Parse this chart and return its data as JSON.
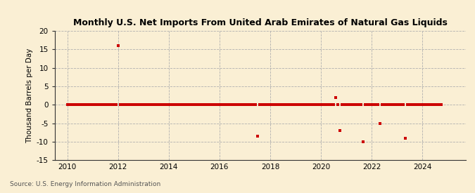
{
  "title": "Monthly U.S. Net Imports From United Arab Emirates of Natural Gas Liquids",
  "ylabel": "Thousand Barrels per Day",
  "source": "Source: U.S. Energy Information Administration",
  "background_color": "#faefd4",
  "marker_color": "#cc0000",
  "xlim": [
    2009.5,
    2025.7
  ],
  "ylim": [
    -15,
    20
  ],
  "yticks": [
    -15,
    -10,
    -5,
    0,
    5,
    10,
    15,
    20
  ],
  "xticks": [
    2010,
    2012,
    2014,
    2016,
    2018,
    2020,
    2022,
    2024
  ],
  "data": [
    [
      2010.0,
      0
    ],
    [
      2010.083,
      0
    ],
    [
      2010.167,
      0
    ],
    [
      2010.25,
      0
    ],
    [
      2010.333,
      0
    ],
    [
      2010.417,
      0
    ],
    [
      2010.5,
      0
    ],
    [
      2010.583,
      0
    ],
    [
      2010.667,
      0
    ],
    [
      2010.75,
      0
    ],
    [
      2010.833,
      0
    ],
    [
      2010.917,
      0
    ],
    [
      2011.0,
      0
    ],
    [
      2011.083,
      0
    ],
    [
      2011.167,
      0
    ],
    [
      2011.25,
      0
    ],
    [
      2011.333,
      0
    ],
    [
      2011.417,
      0
    ],
    [
      2011.5,
      0
    ],
    [
      2011.583,
      0
    ],
    [
      2011.667,
      0
    ],
    [
      2011.75,
      0
    ],
    [
      2011.833,
      0
    ],
    [
      2011.917,
      0
    ],
    [
      2012.0,
      16
    ],
    [
      2012.083,
      0
    ],
    [
      2012.167,
      0
    ],
    [
      2012.25,
      0
    ],
    [
      2012.333,
      0
    ],
    [
      2012.417,
      0
    ],
    [
      2012.5,
      0
    ],
    [
      2012.583,
      0
    ],
    [
      2012.667,
      0
    ],
    [
      2012.75,
      0
    ],
    [
      2012.833,
      0
    ],
    [
      2012.917,
      0
    ],
    [
      2013.0,
      0
    ],
    [
      2013.083,
      0
    ],
    [
      2013.167,
      0
    ],
    [
      2013.25,
      0
    ],
    [
      2013.333,
      0
    ],
    [
      2013.417,
      0
    ],
    [
      2013.5,
      0
    ],
    [
      2013.583,
      0
    ],
    [
      2013.667,
      0
    ],
    [
      2013.75,
      0
    ],
    [
      2013.833,
      0
    ],
    [
      2013.917,
      0
    ],
    [
      2014.0,
      0
    ],
    [
      2014.083,
      0
    ],
    [
      2014.167,
      0
    ],
    [
      2014.25,
      0
    ],
    [
      2014.333,
      0
    ],
    [
      2014.417,
      0
    ],
    [
      2014.5,
      0
    ],
    [
      2014.583,
      0
    ],
    [
      2014.667,
      0
    ],
    [
      2014.75,
      0
    ],
    [
      2014.833,
      0
    ],
    [
      2014.917,
      0
    ],
    [
      2015.0,
      0
    ],
    [
      2015.083,
      0
    ],
    [
      2015.167,
      0
    ],
    [
      2015.25,
      0
    ],
    [
      2015.333,
      0
    ],
    [
      2015.417,
      0
    ],
    [
      2015.5,
      0
    ],
    [
      2015.583,
      0
    ],
    [
      2015.667,
      0
    ],
    [
      2015.75,
      0
    ],
    [
      2015.833,
      0
    ],
    [
      2015.917,
      0
    ],
    [
      2016.0,
      0
    ],
    [
      2016.083,
      0
    ],
    [
      2016.167,
      0
    ],
    [
      2016.25,
      0
    ],
    [
      2016.333,
      0
    ],
    [
      2016.417,
      0
    ],
    [
      2016.5,
      0
    ],
    [
      2016.583,
      0
    ],
    [
      2016.667,
      0
    ],
    [
      2016.75,
      0
    ],
    [
      2016.833,
      0
    ],
    [
      2016.917,
      0
    ],
    [
      2017.0,
      0
    ],
    [
      2017.083,
      0
    ],
    [
      2017.167,
      0
    ],
    [
      2017.25,
      0
    ],
    [
      2017.333,
      0
    ],
    [
      2017.417,
      0
    ],
    [
      2017.5,
      -8.5
    ],
    [
      2017.583,
      0
    ],
    [
      2017.667,
      0
    ],
    [
      2017.75,
      0
    ],
    [
      2017.833,
      0
    ],
    [
      2017.917,
      0
    ],
    [
      2018.0,
      0
    ],
    [
      2018.083,
      0
    ],
    [
      2018.167,
      0
    ],
    [
      2018.25,
      0
    ],
    [
      2018.333,
      0
    ],
    [
      2018.417,
      0
    ],
    [
      2018.5,
      0
    ],
    [
      2018.583,
      0
    ],
    [
      2018.667,
      0
    ],
    [
      2018.75,
      0
    ],
    [
      2018.833,
      0
    ],
    [
      2018.917,
      0
    ],
    [
      2019.0,
      0
    ],
    [
      2019.083,
      0
    ],
    [
      2019.167,
      0
    ],
    [
      2019.25,
      0
    ],
    [
      2019.333,
      0
    ],
    [
      2019.417,
      0
    ],
    [
      2019.5,
      0
    ],
    [
      2019.583,
      0
    ],
    [
      2019.667,
      0
    ],
    [
      2019.75,
      0
    ],
    [
      2019.833,
      0
    ],
    [
      2019.917,
      0
    ],
    [
      2020.0,
      0
    ],
    [
      2020.083,
      0
    ],
    [
      2020.167,
      0
    ],
    [
      2020.25,
      0
    ],
    [
      2020.333,
      0
    ],
    [
      2020.417,
      0
    ],
    [
      2020.5,
      0
    ],
    [
      2020.583,
      2
    ],
    [
      2020.667,
      0
    ],
    [
      2020.75,
      -7
    ],
    [
      2020.833,
      0
    ],
    [
      2020.917,
      0
    ],
    [
      2021.0,
      0
    ],
    [
      2021.083,
      0
    ],
    [
      2021.167,
      0
    ],
    [
      2021.25,
      0
    ],
    [
      2021.333,
      0
    ],
    [
      2021.417,
      0
    ],
    [
      2021.5,
      0
    ],
    [
      2021.583,
      0
    ],
    [
      2021.667,
      -10
    ],
    [
      2021.75,
      0
    ],
    [
      2021.833,
      0
    ],
    [
      2021.917,
      0
    ],
    [
      2022.0,
      0
    ],
    [
      2022.083,
      0
    ],
    [
      2022.167,
      0
    ],
    [
      2022.25,
      0
    ],
    [
      2022.333,
      -5
    ],
    [
      2022.417,
      0
    ],
    [
      2022.5,
      0
    ],
    [
      2022.583,
      0
    ],
    [
      2022.667,
      0
    ],
    [
      2022.75,
      0
    ],
    [
      2022.833,
      0
    ],
    [
      2022.917,
      0
    ],
    [
      2023.0,
      0
    ],
    [
      2023.083,
      0
    ],
    [
      2023.167,
      0
    ],
    [
      2023.25,
      0
    ],
    [
      2023.333,
      -9
    ],
    [
      2023.417,
      0
    ],
    [
      2023.5,
      0
    ],
    [
      2023.583,
      0
    ],
    [
      2023.667,
      0
    ],
    [
      2023.75,
      0
    ],
    [
      2023.833,
      0
    ],
    [
      2023.917,
      0
    ],
    [
      2024.0,
      0
    ],
    [
      2024.083,
      0
    ],
    [
      2024.167,
      0
    ],
    [
      2024.25,
      0
    ],
    [
      2024.333,
      0
    ],
    [
      2024.417,
      0
    ],
    [
      2024.5,
      0
    ],
    [
      2024.583,
      0
    ],
    [
      2024.667,
      0
    ],
    [
      2024.75,
      0
    ]
  ]
}
